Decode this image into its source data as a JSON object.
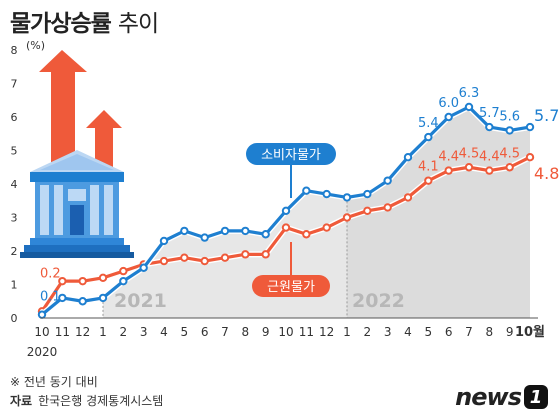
{
  "title": {
    "main": "물가상승률",
    "sub": "추이"
  },
  "notes": {
    "basis": "※ 전년 동기 대비",
    "source_label": "자료",
    "source": "한국은행 경제통계시스템"
  },
  "logo": {
    "text": "news",
    "mark": "1"
  },
  "icons": {
    "arrows": "red-up-arrows-icon",
    "building": "bank-building-icon"
  },
  "chart_data": {
    "type": "line",
    "ylabel": "(%)",
    "ylim": [
      0,
      8
    ],
    "yticks": [
      "0",
      "1",
      "2",
      "3",
      "4",
      "5",
      "6",
      "7",
      "8"
    ],
    "x": [
      "10",
      "11",
      "12",
      "1",
      "2",
      "3",
      "4",
      "5",
      "6",
      "7",
      "8",
      "9",
      "10",
      "11",
      "12",
      "1",
      "2",
      "3",
      "4",
      "5",
      "6",
      "7",
      "8",
      "9",
      "10월"
    ],
    "year_labels": [
      {
        "text": "2020",
        "start_index": 0
      },
      {
        "text": "2021",
        "start_index": 3
      },
      {
        "text": "2022",
        "start_index": 15
      }
    ],
    "series": [
      {
        "name": "소비자물가",
        "color": "#1e7fd0",
        "values": [
          0.1,
          0.6,
          0.5,
          0.6,
          1.1,
          1.5,
          2.3,
          2.6,
          2.4,
          2.6,
          2.6,
          2.5,
          3.2,
          3.8,
          3.7,
          3.6,
          3.7,
          4.1,
          4.8,
          5.4,
          6.0,
          6.3,
          5.7,
          5.6,
          5.7
        ],
        "labels": [
          {
            "index": 0,
            "text": "0.1"
          },
          {
            "index": 19,
            "text": "5.4"
          },
          {
            "index": 20,
            "text": "6.0"
          },
          {
            "index": 21,
            "text": "6.3"
          },
          {
            "index": 22,
            "text": "5.7"
          },
          {
            "index": 23,
            "text": "5.6"
          },
          {
            "index": 24,
            "text": "5.7"
          }
        ]
      },
      {
        "name": "근원물가",
        "color": "#ef5a3a",
        "values": [
          0.2,
          1.1,
          1.1,
          1.2,
          1.4,
          1.6,
          1.7,
          1.8,
          1.7,
          1.8,
          1.9,
          1.9,
          2.7,
          2.5,
          2.7,
          3.0,
          3.2,
          3.3,
          3.6,
          4.1,
          4.4,
          4.5,
          4.4,
          4.5,
          4.8
        ],
        "labels": [
          {
            "index": 0,
            "text": "0.2"
          },
          {
            "index": 19,
            "text": "4.1"
          },
          {
            "index": 20,
            "text": "4.4"
          },
          {
            "index": 21,
            "text": "4.5"
          },
          {
            "index": 22,
            "text": "4.4"
          },
          {
            "index": 23,
            "text": "4.5"
          },
          {
            "index": 24,
            "text": "4.8"
          }
        ]
      }
    ],
    "callouts": [
      {
        "series": 0,
        "text": "소비자물가"
      },
      {
        "series": 1,
        "text": "근원물가"
      }
    ]
  }
}
